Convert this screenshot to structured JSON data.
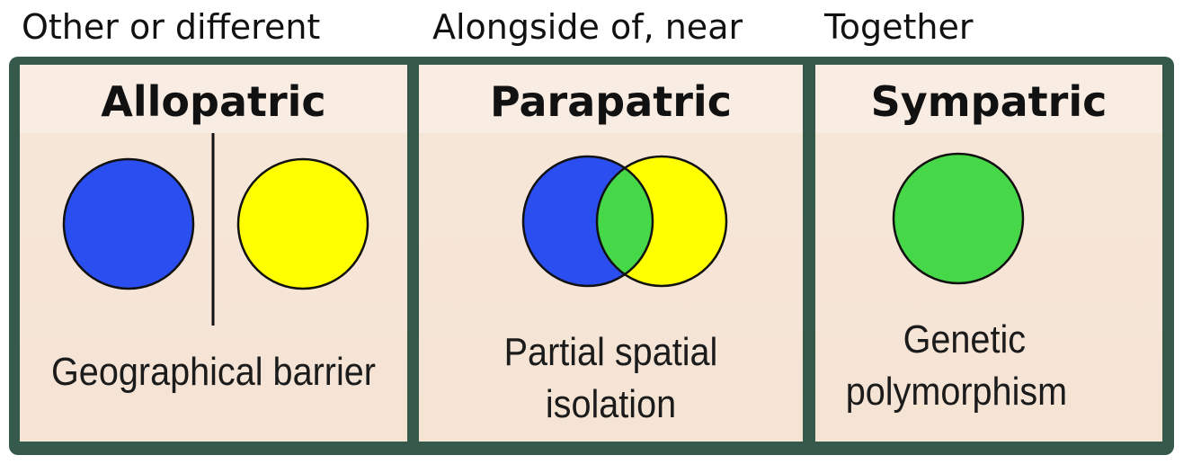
{
  "top_labels": {
    "allopatric": "Other or different",
    "parapatric": "Alongside of, near",
    "sympatric": "Together"
  },
  "panels": {
    "allopatric": {
      "title": "Allopatric",
      "caption": "Geographical barrier"
    },
    "parapatric": {
      "title": "Parapatric",
      "caption_line1": "Partial spatial",
      "caption_line2": "isolation"
    },
    "sympatric": {
      "title": "Sympatric",
      "caption_line1": "Genetic",
      "caption_line2": "polymorphism"
    }
  },
  "colors": {
    "frame": "#35594a",
    "population_a": "#2b4ef0",
    "population_b": "#ffff00",
    "overlap_hybrid": "#47d84a",
    "panel_bg": "#f7e9dd"
  }
}
